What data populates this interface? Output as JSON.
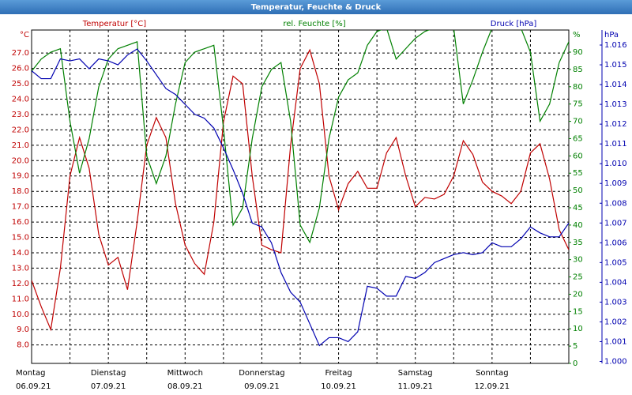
{
  "chart_data": {
    "type": "line",
    "title": "Temperatur, Feuchte & Druck",
    "x": [
      0,
      0.125,
      0.25,
      0.375,
      0.5,
      0.625,
      0.75,
      0.875,
      1,
      1.125,
      1.25,
      1.375,
      1.5,
      1.625,
      1.75,
      1.875,
      2,
      2.125,
      2.25,
      2.375,
      2.5,
      2.625,
      2.75,
      2.875,
      3,
      3.125,
      3.25,
      3.375,
      3.5,
      3.625,
      3.75,
      3.875,
      4,
      4.125,
      4.25,
      4.375,
      4.5,
      4.625,
      4.75,
      4.875,
      5,
      5.125,
      5.25,
      5.375,
      5.5,
      5.625,
      5.75,
      5.875,
      6,
      6.125,
      6.25,
      6.375,
      6.5,
      6.625,
      6.75,
      6.875,
      7
    ],
    "xlim": [
      0,
      7
    ],
    "xticks": [
      0,
      0.5,
      1,
      1.5,
      2,
      2.5,
      3,
      3.5,
      4,
      4.5,
      5,
      5.5,
      6,
      6.5,
      7
    ],
    "day_names": [
      "Montag",
      "Dienstag",
      "Mittwoch",
      "Donnerstag",
      "Freitag",
      "Samstag",
      "Sonntag"
    ],
    "day_dates": [
      "06.09.21",
      "07.09.21",
      "08.09.21",
      "09.09.21",
      "10.09.21",
      "11.09.21",
      "12.09.21"
    ],
    "day_positions": [
      0,
      1,
      2,
      3,
      4,
      5,
      6
    ],
    "ylim": [
      6.8,
      28.5
    ],
    "yticks": [
      {
        "value": 8,
        "label": "8.0"
      },
      {
        "value": 9,
        "label": "9.0"
      },
      {
        "value": 10,
        "label": "10.0"
      },
      {
        "value": 11,
        "label": "11.0"
      },
      {
        "value": 12,
        "label": "12.0"
      },
      {
        "value": 13,
        "label": "13.0"
      },
      {
        "value": 14,
        "label": "14.0"
      },
      {
        "value": 15,
        "label": "15.0"
      },
      {
        "value": 16,
        "label": "16.0"
      },
      {
        "value": 17,
        "label": "17.0"
      },
      {
        "value": 18,
        "label": "18.0"
      },
      {
        "value": 19,
        "label": "19.0"
      },
      {
        "value": 20,
        "label": "20.0"
      },
      {
        "value": 21,
        "label": "21.0"
      },
      {
        "value": 22,
        "label": "22.0"
      },
      {
        "value": 23,
        "label": "23.0"
      },
      {
        "value": 24,
        "label": "24.0"
      },
      {
        "value": 25,
        "label": "25.0"
      },
      {
        "value": 26,
        "label": "26.0"
      },
      {
        "value": 27,
        "label": "27.0"
      }
    ],
    "y_unit": "°C",
    "y2lim": [
      0,
      96.4
    ],
    "y2ticks": [
      0,
      5,
      10,
      15,
      20,
      25,
      30,
      35,
      40,
      45,
      50,
      55,
      60,
      65,
      70,
      75,
      80,
      85,
      90
    ],
    "y2_unit": "%",
    "y3lim": [
      0.9999,
      1.01676
    ],
    "y3ticks": [
      {
        "value": 1.0,
        "label": "1.000"
      },
      {
        "value": 1.001,
        "label": "1.001"
      },
      {
        "value": 1.002,
        "label": "1.002"
      },
      {
        "value": 1.003,
        "label": "1.003"
      },
      {
        "value": 1.004,
        "label": "1.004"
      },
      {
        "value": 1.005,
        "label": "1.005"
      },
      {
        "value": 1.006,
        "label": "1.006"
      },
      {
        "value": 1.007,
        "label": "1.007"
      },
      {
        "value": 1.008,
        "label": "1.008"
      },
      {
        "value": 1.009,
        "label": "1.009"
      },
      {
        "value": 1.01,
        "label": "1.010"
      },
      {
        "value": 1.011,
        "label": "1.011"
      },
      {
        "value": 1.012,
        "label": "1.012"
      },
      {
        "value": 1.013,
        "label": "1.013"
      },
      {
        "value": 1.014,
        "label": "1.014"
      },
      {
        "value": 1.015,
        "label": "1.015"
      },
      {
        "value": 1.016,
        "label": "1.016"
      }
    ],
    "y3_unit": "hPa",
    "grid": true,
    "series": [
      {
        "name": "Temperatur [°C]",
        "color": "#c00000",
        "axis": "y",
        "values": [
          12.2,
          10.5,
          9.0,
          13.0,
          19.0,
          21.5,
          19.5,
          15.2,
          13.2,
          13.7,
          11.6,
          16.0,
          21.0,
          22.8,
          21.5,
          17.2,
          14.5,
          13.3,
          12.6,
          16.0,
          22.5,
          25.5,
          25.0,
          19.0,
          14.5,
          14.2,
          14.0,
          21.0,
          26.0,
          27.2,
          25.0,
          19.0,
          16.8,
          18.5,
          19.3,
          18.2,
          18.2,
          20.5,
          21.5,
          19.0,
          17.0,
          17.6,
          17.5,
          17.8,
          19.0,
          21.3,
          20.4,
          18.6,
          18.0,
          17.7,
          17.2,
          18.0,
          20.5,
          21.1,
          18.8,
          15.5,
          14.2
        ]
      },
      {
        "name": "rel. Feuchte [%]",
        "color": "#008000",
        "axis": "y2",
        "values": [
          84.5,
          88,
          90,
          91,
          70,
          55,
          65,
          80,
          88,
          91,
          92,
          93,
          60,
          52,
          60,
          75,
          87,
          90,
          91,
          92,
          68,
          40,
          45,
          65,
          80,
          85,
          87,
          70,
          40,
          35,
          45,
          65,
          77,
          82,
          84,
          92,
          96,
          97,
          88,
          91,
          94,
          96,
          97,
          97,
          97,
          75,
          82,
          90,
          97,
          97,
          97,
          97,
          90,
          70,
          75,
          87,
          93
        ]
      },
      {
        "name": "Druck [hPa]",
        "color": "#0000b0",
        "axis": "y3",
        "values": [
          1.0147,
          1.0143,
          1.0143,
          1.0153,
          1.0152,
          1.0153,
          1.0148,
          1.0153,
          1.0152,
          1.015,
          1.0155,
          1.0158,
          1.0152,
          1.0145,
          1.0138,
          1.0135,
          1.013,
          1.0125,
          1.0123,
          1.0118,
          1.0108,
          1.0097,
          1.0085,
          1.007,
          1.0068,
          1.006,
          1.0045,
          1.0035,
          1.003,
          1.0019,
          1.0008,
          1.0012,
          1.0012,
          1.001,
          1.0015,
          1.0038,
          1.0037,
          1.0033,
          1.0033,
          1.0043,
          1.0042,
          1.0045,
          1.005,
          1.0052,
          1.0054,
          1.0055,
          1.0054,
          1.0055,
          1.006,
          1.0058,
          1.0058,
          1.0062,
          1.0068,
          1.0065,
          1.0063,
          1.0063,
          1.007
        ]
      }
    ]
  }
}
